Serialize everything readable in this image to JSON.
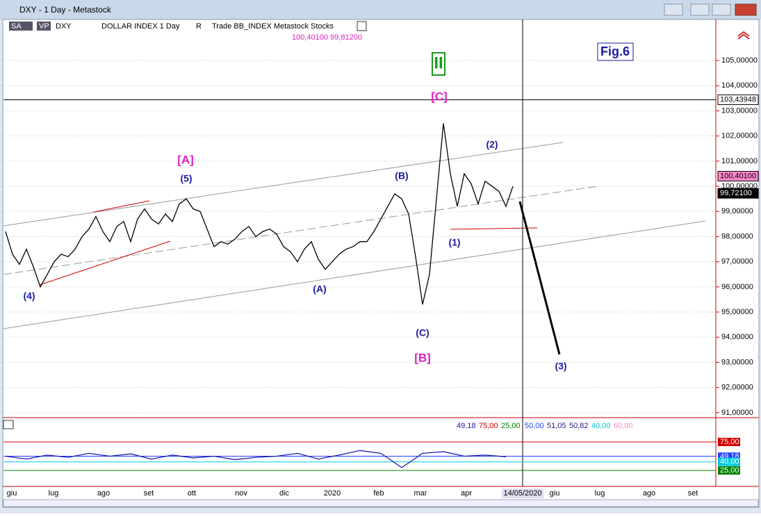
{
  "window": {
    "title": "DXY - 1 Day - Metastock"
  },
  "toolbar": {
    "items": [
      "SA",
      "VP",
      "DXY",
      "DOLLAR INDEX  1 Day",
      "R",
      "Trade  BB_INDEX  Metastock  Stocks"
    ],
    "quote": "100,40100   99,81200"
  },
  "chart_data": [
    {
      "type": "line",
      "color": "#000000",
      "values": [
        98.2,
        97.3,
        96.9,
        97.5,
        96.8,
        96.0,
        96.5,
        97.0,
        97.3,
        97.2,
        97.5,
        98.0,
        98.3,
        98.8,
        98.2,
        97.8,
        98.4,
        98.6,
        97.8,
        98.7,
        99.1,
        98.7,
        98.5,
        98.9,
        98.6,
        99.3,
        99.5,
        99.1,
        99.0,
        98.3,
        97.6,
        97.8,
        97.7,
        97.9,
        98.2,
        98.4,
        98.0,
        98.2,
        98.3,
        98.1,
        97.6,
        97.4,
        97.0,
        97.5,
        97.8,
        97.1,
        96.7,
        97.0,
        97.3,
        97.5,
        97.6,
        97.8,
        97.8,
        98.2,
        98.7,
        99.2,
        99.7,
        99.5,
        98.9,
        97.2,
        95.3,
        96.5,
        99.5,
        102.5,
        100.5,
        99.2,
        100.5,
        100.1,
        99.3,
        100.2,
        100.0,
        99.8,
        99.2,
        100.0
      ],
      "ylim": [
        90.83,
        106.08
      ],
      "yticks": [
        {
          "value": 91,
          "label": "91,00000"
        },
        {
          "value": 92,
          "label": "92,00000"
        },
        {
          "value": 93,
          "label": "93,00000"
        },
        {
          "value": 94,
          "label": "94,00000"
        },
        {
          "value": 95,
          "label": "95,00000"
        },
        {
          "value": 96,
          "label": "96,00000"
        },
        {
          "value": 97,
          "label": "97,00000"
        },
        {
          "value": 98,
          "label": "98,00000"
        },
        {
          "value": 99,
          "label": "99,00000"
        },
        {
          "value": 100,
          "label": "100,00000"
        },
        {
          "value": 101,
          "label": "101,00000"
        },
        {
          "value": 102,
          "label": "102,00000"
        },
        {
          "value": 103,
          "label": "103,00000"
        },
        {
          "value": 104,
          "label": "104,00000"
        },
        {
          "value": 105,
          "label": "105,00000"
        }
      ],
      "grid": true,
      "price_tags": [
        {
          "value": 103.43948,
          "label": "103,43948",
          "color": "#ffffff"
        },
        {
          "value": 100.401,
          "label": "100,40100",
          "color": "#ff88cc"
        },
        {
          "value": 99.721,
          "label": "99,72100",
          "color": "#000000"
        }
      ],
      "annotations": [
        {
          "text": "II",
          "color": "#1a9a1a"
        },
        {
          "text": "[C]",
          "color": "#e020c0"
        },
        {
          "text": "[A]",
          "color": "#e020c0"
        },
        {
          "text": "(5)",
          "color": "#1a1aa0"
        },
        {
          "text": "(4)",
          "color": "#1a1aa0"
        },
        {
          "text": "(A)",
          "color": "#1a1aa0"
        },
        {
          "text": "(B)",
          "color": "#1a1aa0"
        },
        {
          "text": "(C)",
          "color": "#1a1aa0"
        },
        {
          "text": "[B]",
          "color": "#e020c0"
        },
        {
          "text": "(1)",
          "color": "#1a1aa0"
        },
        {
          "text": "(2)",
          "color": "#1a1aa0"
        },
        {
          "text": "(3)",
          "color": "#1a1aa0"
        }
      ],
      "fig_label": "Fig.6"
    },
    {
      "type": "line",
      "color": "#1a1ab0",
      "values": [
        50,
        45,
        52,
        48,
        55,
        50,
        54,
        45,
        52,
        47,
        50,
        44,
        48,
        50,
        55,
        45,
        52,
        60,
        55,
        30,
        55,
        58,
        50,
        52,
        49
      ],
      "ylim": [
        0.6,
        112.8
      ],
      "levels": [
        {
          "value": 75,
          "color": "#d00000"
        },
        {
          "value": 50,
          "color": "#2040ff"
        },
        {
          "value": 40,
          "color": "#00c8d8"
        },
        {
          "value": 25,
          "color": "#008000"
        }
      ],
      "yticks": [
        {
          "value": 75,
          "label": "75,00",
          "color": "#d00000"
        },
        {
          "value": 49.18,
          "label": "49,18",
          "color": "#2040ff"
        },
        {
          "value": 40,
          "label": "40,00",
          "color": "#00c8d8"
        },
        {
          "value": 25,
          "label": "25,00",
          "color": "#008000"
        }
      ],
      "header": [
        {
          "value": 49.18,
          "label": "49,18",
          "color": "#1a1aa0"
        },
        {
          "value": 75,
          "label": "75,00",
          "color": "#d00000"
        },
        {
          "value": 25,
          "label": "25,00",
          "color": "#008000"
        },
        {
          "value": 50,
          "label": "50,00",
          "color": "#2040ff"
        },
        {
          "value": 51.05,
          "label": "51,05",
          "color": "#1a1a80"
        },
        {
          "value": 50.82,
          "label": "50,82",
          "color": "#1a1a80"
        },
        {
          "value": 40,
          "label": "40,00",
          "color": "#00c8d8"
        },
        {
          "value": 60,
          "label": "60,00",
          "color": "#ff88cc"
        }
      ]
    }
  ],
  "x_axis": [
    "giu",
    "lug",
    "ago",
    "set",
    "ott",
    "nov",
    "dic",
    "2020",
    "feb",
    "mar",
    "apr",
    "14/05/2020",
    "giu",
    "lug",
    "ago",
    "set"
  ]
}
